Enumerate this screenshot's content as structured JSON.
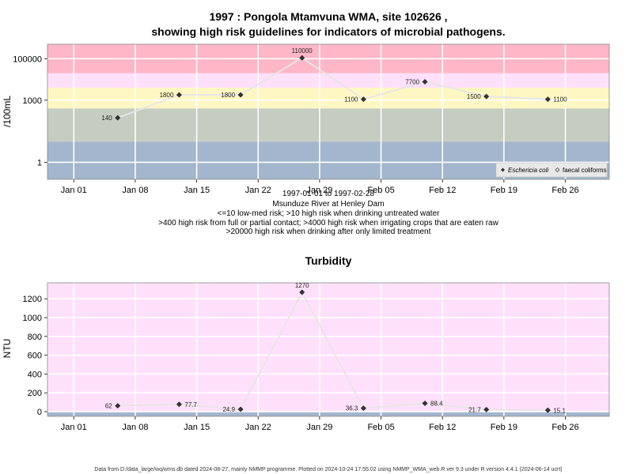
{
  "chart_data": [
    {
      "type": "line",
      "title_line1": "1997 : Pongola Mtamvuna WMA, site 102626 ,",
      "title_line2": "showing high risk guidelines for indicators of microbial pathogens.",
      "ylabel": "/100mL",
      "yscale": "log",
      "ylim": [
        0.15,
        500000
      ],
      "yticks": [
        {
          "v": 1,
          "label": "1"
        },
        {
          "v": 1000,
          "label": "1000"
        },
        {
          "v": 100000,
          "label": "100000"
        }
      ],
      "xticks": [
        "Jan 01",
        "Jan 08",
        "Jan 15",
        "Jan 22",
        "Jan 29",
        "Feb 05",
        "Feb 12",
        "Feb 19",
        "Feb 26"
      ],
      "xlim": [
        "1996-12-29",
        "1997-03-03"
      ],
      "bands": [
        {
          "from": 0.15,
          "to": 10,
          "color": "#a3b6cd"
        },
        {
          "from": 10,
          "to": 400,
          "color": "#c4cdc0"
        },
        {
          "from": 400,
          "to": 4000,
          "color": "#fff7c2"
        },
        {
          "from": 4000,
          "to": 20000,
          "color": "#ffe0fb"
        },
        {
          "from": 20000,
          "to": 500000,
          "color": "#ffb6c6"
        }
      ],
      "series": [
        {
          "name": "Eschericia coli",
          "x": [
            "1997-01-06",
            "1997-01-13",
            "1997-01-20",
            "1997-01-27",
            "1997-02-03",
            "1997-02-10",
            "1997-02-17",
            "1997-02-24"
          ],
          "y": [
            140,
            1800,
            1800,
            110000,
            1100,
            7700,
            1500,
            1100
          ],
          "labels": [
            "140",
            "1800",
            "1800",
            "110000",
            "1100",
            "7700",
            "1500",
            "1100"
          ]
        }
      ],
      "legend": {
        "position": "bottom-right",
        "items": [
          "Eschericia coli",
          "faecal coliforms"
        ]
      },
      "subtitle": [
        "1997-01-01 to 1997-02-28",
        "Msunduze River at Henley Dam",
        "<=10 low-med risk; >10 high risk when drinking untreated water",
        ">400 high risk from full or partial contact; >4000 high risk when irrigating crops that are eaten raw",
        ">20000 high risk when drinking after only limited treatment"
      ]
    },
    {
      "type": "line",
      "title": "Turbidity",
      "ylabel": "NTU",
      "ylim": [
        -50,
        1370
      ],
      "yticks": [
        {
          "v": 0,
          "label": "0"
        },
        {
          "v": 200,
          "label": "200"
        },
        {
          "v": 400,
          "label": "400"
        },
        {
          "v": 600,
          "label": "600"
        },
        {
          "v": 800,
          "label": "800"
        },
        {
          "v": 1000,
          "label": "1000"
        },
        {
          "v": 1200,
          "label": "1200"
        }
      ],
      "xticks": [
        "Jan 01",
        "Jan 08",
        "Jan 15",
        "Jan 22",
        "Jan 29",
        "Feb 05",
        "Feb 12",
        "Feb 19",
        "Feb 26"
      ],
      "xlim": [
        "1996-12-29",
        "1997-03-03"
      ],
      "bands": [
        {
          "from": -50,
          "to": -5,
          "color": "#a3b6cd"
        },
        {
          "from": -5,
          "to": 1370,
          "color": "#ffe0fb"
        }
      ],
      "series": [
        {
          "name": "Turbidity",
          "x": [
            "1997-01-06",
            "1997-01-13",
            "1997-01-20",
            "1997-01-27",
            "1997-02-03",
            "1997-02-10",
            "1997-02-17",
            "1997-02-24"
          ],
          "y": [
            62,
            77.7,
            24.9,
            1270,
            36.3,
            88.4,
            21.7,
            15.1
          ],
          "labels": [
            "62",
            "77.7",
            "24.9",
            "1270",
            "36.3",
            "88.4",
            "21.7",
            "15.1"
          ]
        }
      ]
    }
  ],
  "footer": "Data from D:/data_large/wq/wms.db dated 2024-08-27, mainly NMMP programme. Plotted on 2024-10-24 17:55:02 using NMMP_WMA_web.R ver 9.3 under R version 4.4.1 (2024-06-14 ucrt)"
}
